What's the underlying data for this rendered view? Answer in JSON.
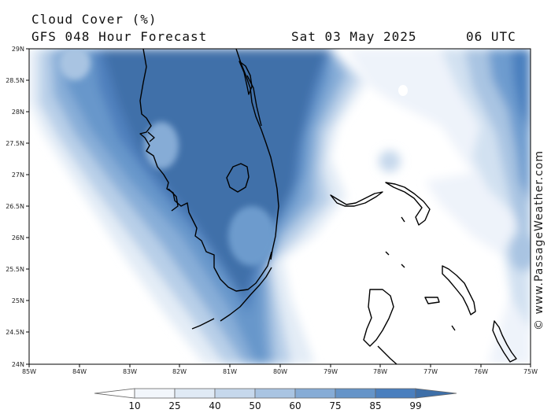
{
  "header": {
    "title": "Cloud Cover (%)",
    "subtitle": "GFS 048 Hour Forecast",
    "date": "Sat 03 May 2025",
    "time": "06 UTC"
  },
  "watermark": "© www.PassageWeather.com",
  "axes": {
    "lat_labels": [
      "29N",
      "28.5N",
      "28N",
      "27.5N",
      "27N",
      "26.5N",
      "26N",
      "25.5N",
      "25N",
      "24.5N",
      "24N"
    ],
    "lon_labels": [
      "85W",
      "84W",
      "83W",
      "82W",
      "81W",
      "80W",
      "79W",
      "78W",
      "77W",
      "76W",
      "75W"
    ]
  },
  "colorbar": {
    "labels": [
      "10",
      "25",
      "40",
      "50",
      "60",
      "75",
      "85",
      "99"
    ],
    "colors": [
      "#ffffff",
      "#f2f6fb",
      "#e0eaf5",
      "#c6d8ec",
      "#a9c4e2",
      "#86acd6",
      "#6594c8",
      "#4a7fbe",
      "#3e6fa8"
    ]
  }
}
